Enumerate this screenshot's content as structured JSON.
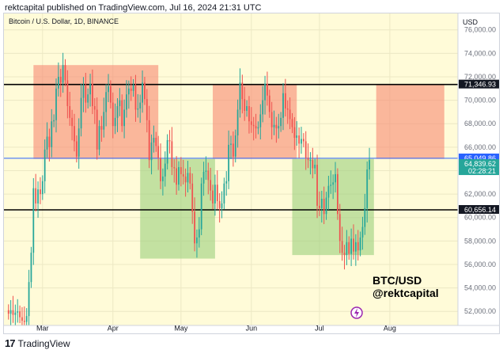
{
  "header": {
    "published_text": "rektcapital published on TradingView.com, Jul 16, 2024 21:31 UTC"
  },
  "footer": {
    "logo_text": "17",
    "brand": "TradingView"
  },
  "chart_data": {
    "type": "candlestick",
    "title": "Bitcoin / U.S. Dollar, 1D, BINANCE",
    "currency_label": "USD",
    "watermark": [
      "BTC/USD",
      "@rektcapital"
    ],
    "y_ticks": [
      52000,
      54000,
      56000,
      58000,
      60000,
      62000,
      64000,
      66000,
      68000,
      70000,
      72000,
      74000,
      76000
    ],
    "y_tick_labels": [
      "52,000.00",
      "54,000.00",
      "56,000.00",
      "58,000.00",
      "60,000.00",
      "62,000.00",
      "64,000.00",
      "66,000.00",
      "68,000.00",
      "70,000.00",
      "72,000.00",
      "74,000.00",
      "76,000.00"
    ],
    "ylim": [
      50800,
      77400
    ],
    "x_labels": [
      {
        "label": "Mar",
        "date": "2024-03-01"
      },
      {
        "label": "Apr",
        "date": "2024-04-01"
      },
      {
        "label": "May",
        "date": "2024-05-01"
      },
      {
        "label": "Jun",
        "date": "2024-06-01"
      },
      {
        "label": "Jul",
        "date": "2024-07-01"
      },
      {
        "label": "Aug",
        "date": "2024-08-01"
      }
    ],
    "xlim": [
      "2024-02-13",
      "2024-08-31"
    ],
    "price_labels": [
      {
        "value": 71346.93,
        "text": "71,346.93",
        "bg": "#131722",
        "fg": "#ffffff"
      },
      {
        "value": 65049.86,
        "text": "65,049.86",
        "bg": "#2962ff",
        "fg": "#ffffff"
      },
      {
        "value": 64839.62,
        "text": "64,839.62",
        "sub": "02:28:21",
        "bg": "#26a69a",
        "fg": "#ffffff"
      },
      {
        "value": 60656.14,
        "text": "60,656.14",
        "bg": "#131722",
        "fg": "#ffffff"
      }
    ],
    "horizontal_lines": [
      {
        "value": 71346.93,
        "color": "#000000"
      },
      {
        "value": 65049.86,
        "color": "#2962ff"
      },
      {
        "value": 60656.14,
        "color": "#000000"
      }
    ],
    "zones": [
      {
        "kind": "resistance",
        "from": "2024-02-26",
        "to": "2024-04-21",
        "low": 65000,
        "high": 73000
      },
      {
        "kind": "support",
        "from": "2024-04-13",
        "to": "2024-05-16",
        "low": 56500,
        "high": 65000
      },
      {
        "kind": "resistance",
        "from": "2024-05-15",
        "to": "2024-06-21",
        "low": 65000,
        "high": 71300
      },
      {
        "kind": "support",
        "from": "2024-06-19",
        "to": "2024-07-25",
        "low": 56800,
        "high": 65000
      },
      {
        "kind": "resistance",
        "from": "2024-07-26",
        "to": "2024-08-25",
        "low": 65000,
        "high": 71300
      }
    ],
    "candles_close": {
      "start": "2024-02-15",
      "values": [
        51800,
        52100,
        51700,
        51900,
        52000,
        51500,
        51200,
        51100,
        51600,
        54500,
        57000,
        62500,
        61200,
        62400,
        62000,
        63100,
        65800,
        66900,
        66000,
        68200,
        68300,
        71000,
        72000,
        71500,
        73000,
        71700,
        69500,
        68500,
        67800,
        66500,
        65200,
        67600,
        70200,
        71300,
        69800,
        70500,
        71400,
        69500,
        69200,
        65800,
        67800,
        67500,
        69000,
        70700,
        71200,
        69800,
        67800,
        68500,
        69500,
        70000,
        67800,
        69200,
        70500,
        71000,
        70800,
        71300,
        69200,
        69300,
        69800,
        71500,
        70100,
        68300,
        64900,
        66400,
        66800,
        66100,
        65100,
        63100,
        63500,
        64600,
        66600,
        66500,
        64300,
        64200,
        62800,
        64300,
        63700,
        63500,
        63000,
        63800,
        62900,
        60500,
        57800,
        58300,
        59000,
        62900,
        63900,
        64000,
        63200,
        62300,
        61200,
        62800,
        61400,
        60800,
        61200,
        62900,
        63100,
        66200,
        66300,
        65200,
        67000,
        69200,
        71500,
        70100,
        69100,
        69500,
        68200,
        67900,
        67800,
        67600,
        67700,
        68800,
        70000,
        71400,
        70400,
        69000,
        67700,
        67900,
        67600,
        67800,
        68500,
        70600,
        69300,
        69200,
        68400,
        67700,
        66800,
        67000,
        66300,
        66700,
        66500,
        65100,
        64900,
        64900,
        64200,
        64500,
        61000,
        60800,
        61600,
        60300,
        61700,
        62700,
        62800,
        63000,
        63700,
        60300,
        58000,
        57000,
        56800,
        57900,
        56900,
        58200,
        57100,
        57900,
        57200,
        58300,
        59200,
        60800,
        64100,
        64900
      ]
    }
  }
}
